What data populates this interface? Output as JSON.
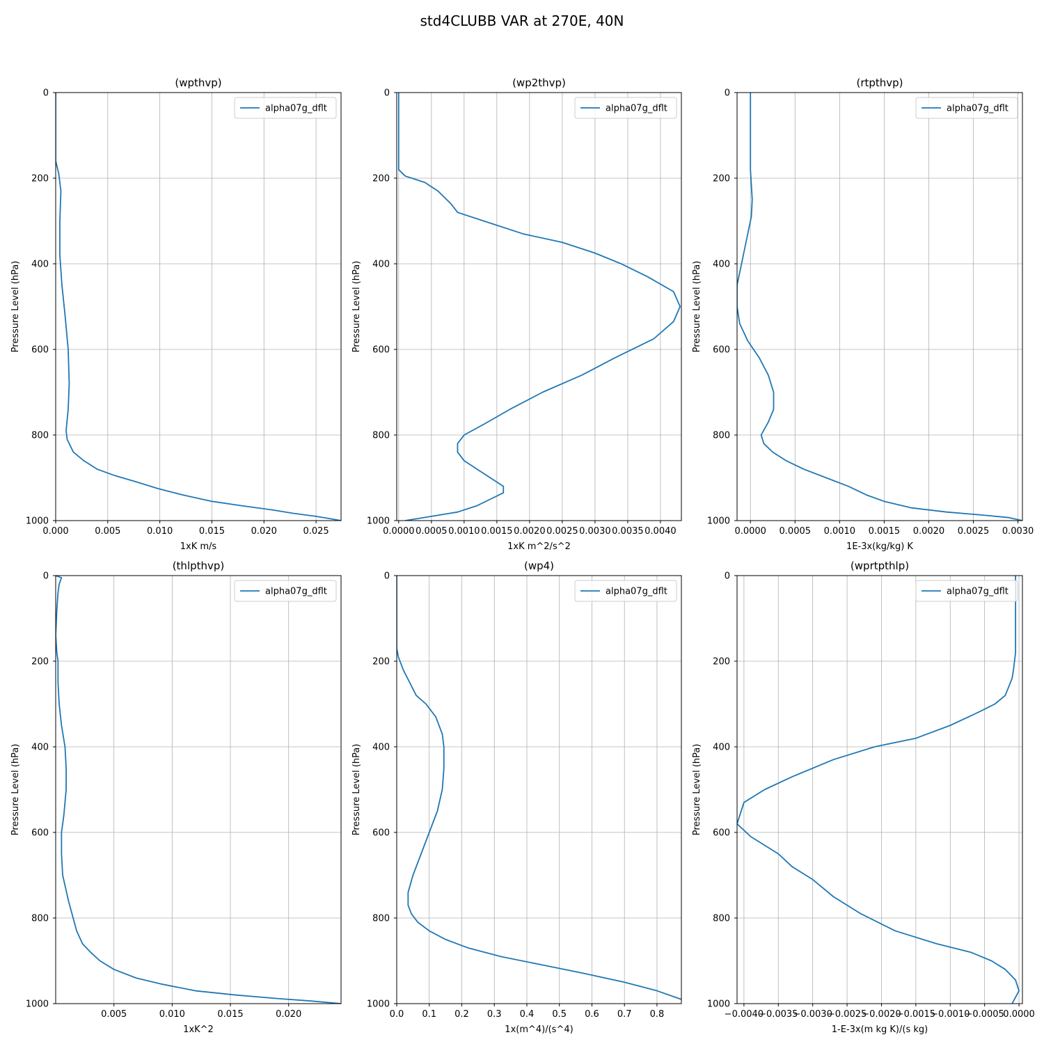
{
  "figure": {
    "title": "std4CLUBB VAR at 270E, 40N"
  },
  "chart_data": [
    {
      "type": "line",
      "title": "(wpthvp)",
      "xlabel": "1xK m/s",
      "ylabel": "Pressure Level (hPa)",
      "xlim": [
        0,
        0.0274
      ],
      "ylim": [
        1000,
        0
      ],
      "xticks": [
        "0.000",
        "0.005",
        "0.010",
        "0.015",
        "0.020",
        "0.025"
      ],
      "xtick_values": [
        0,
        0.005,
        0.01,
        0.015,
        0.02,
        0.025
      ],
      "yticks": [
        "0",
        "200",
        "400",
        "600",
        "800",
        "1000"
      ],
      "grid": true,
      "legend": "upper right",
      "series": [
        {
          "name": "alpha07g_dflt",
          "x": [
            0.0,
            0.0,
            0.0,
            0.0003,
            0.0005,
            0.0004,
            0.0004,
            0.0006,
            0.0009,
            0.0012,
            0.0013,
            0.0012,
            0.001,
            0.0011,
            0.0017,
            0.0027,
            0.004,
            0.0057,
            0.0078,
            0.0098,
            0.0122,
            0.015,
            0.0178,
            0.0208,
            0.0228,
            0.025,
            0.0262,
            0.0274
          ],
          "y": [
            0,
            100,
            160,
            190,
            230,
            300,
            380,
            450,
            520,
            600,
            680,
            740,
            790,
            810,
            840,
            860,
            880,
            895,
            910,
            925,
            940,
            955,
            965,
            975,
            983,
            990,
            995,
            1000
          ]
        }
      ]
    },
    {
      "type": "line",
      "title": "(wp2thvp)",
      "xlabel": "1xK m^2/s^2",
      "ylabel": "Pressure Level (hPa)",
      "xlim": [
        -3e-05,
        0.00432
      ],
      "ylim": [
        1000,
        0
      ],
      "xticks": [
        "0.0000",
        "0.0005",
        "0.0010",
        "0.0015",
        "0.0020",
        "0.0025",
        "0.0030",
        "0.0035",
        "0.0040"
      ],
      "xtick_values": [
        0,
        0.0005,
        0.001,
        0.0015,
        0.002,
        0.0025,
        0.003,
        0.0035,
        0.004
      ],
      "yticks": [
        "0",
        "200",
        "400",
        "600",
        "800",
        "1000"
      ],
      "grid": true,
      "legend": "upper right",
      "series": [
        {
          "name": "alpha07g_dflt",
          "x": [
            0.0,
            0.0,
            0.0,
            0.0001,
            0.0004,
            0.0006,
            0.0008,
            0.0009,
            0.0013,
            0.0019,
            0.0025,
            0.003,
            0.0034,
            0.0038,
            0.0042,
            0.0043,
            0.0042,
            0.0039,
            0.0033,
            0.0028,
            0.0022,
            0.0017,
            0.0013,
            0.001,
            0.0009,
            0.0009,
            0.001,
            0.0012,
            0.0014,
            0.0016,
            0.0016,
            0.0014,
            0.0012,
            0.0009,
            0.0005,
            0.0001
          ],
          "y": [
            0,
            100,
            180,
            195,
            210,
            230,
            260,
            280,
            300,
            330,
            350,
            375,
            400,
            430,
            465,
            500,
            535,
            575,
            620,
            660,
            700,
            740,
            775,
            800,
            820,
            840,
            860,
            880,
            900,
            920,
            935,
            950,
            965,
            980,
            990,
            1000
          ]
        }
      ]
    },
    {
      "type": "line",
      "title": "(rtpthvp)",
      "xlabel": "1E-3x(kg/kg) K",
      "ylabel": "Pressure Level (hPa)",
      "xlim": [
        -0.00015,
        0.00305
      ],
      "ylim": [
        1000,
        0
      ],
      "xticks": [
        "0.0000",
        "0.0005",
        "0.0010",
        "0.0015",
        "0.0020",
        "0.0025",
        "0.0030"
      ],
      "xtick_values": [
        0,
        0.0005,
        0.001,
        0.0015,
        0.002,
        0.0025,
        0.003
      ],
      "yticks": [
        "0",
        "200",
        "400",
        "600",
        "800",
        "1000"
      ],
      "grid": true,
      "legend": "upper right",
      "series": [
        {
          "name": "alpha07g_dflt",
          "x": [
            0.0,
            0.0,
            0.0,
            2e-05,
            1e-05,
            -5e-05,
            -0.0001,
            -0.00015,
            -0.00015,
            -0.00012,
            -3e-05,
            0.0001,
            0.0002,
            0.00026,
            0.00026,
            0.0002,
            0.00012,
            0.00015,
            0.00025,
            0.0004,
            0.0006,
            0.00085,
            0.0011,
            0.0013,
            0.0015,
            0.0018,
            0.0022,
            0.0026,
            0.0029,
            0.00305
          ],
          "y": [
            0,
            100,
            180,
            250,
            290,
            350,
            400,
            450,
            500,
            540,
            580,
            620,
            660,
            700,
            740,
            770,
            800,
            820,
            840,
            860,
            880,
            900,
            920,
            940,
            955,
            970,
            980,
            987,
            993,
            1000
          ]
        }
      ]
    },
    {
      "type": "line",
      "title": "(thlpthvp)",
      "xlabel": "1xK^2",
      "ylabel": "Pressure Level (hPa)",
      "xlim": [
        0,
        0.0245
      ],
      "ylim": [
        1000,
        0
      ],
      "xticks": [
        "0.005",
        "0.010",
        "0.015",
        "0.020"
      ],
      "xtick_values": [
        0.005,
        0.01,
        0.015,
        0.02
      ],
      "yticks": [
        "0",
        "200",
        "400",
        "600",
        "800",
        "1000"
      ],
      "grid": true,
      "legend": "upper right",
      "series": [
        {
          "name": "alpha07g_dflt",
          "x": [
            0.0,
            0.0005,
            0.0003,
            0.0002,
            0.0001,
            0.0,
            0.0001,
            0.0002,
            0.0002,
            0.0003,
            0.0005,
            0.0008,
            0.0009,
            0.0009,
            0.0007,
            0.0005,
            0.0005,
            0.0006,
            0.0011,
            0.0015,
            0.0018,
            0.0023,
            0.003,
            0.0038,
            0.005,
            0.0069,
            0.0092,
            0.012,
            0.0155,
            0.019,
            0.022,
            0.0245
          ],
          "y": [
            0,
            5,
            20,
            40,
            80,
            140,
            180,
            200,
            250,
            300,
            350,
            400,
            450,
            500,
            560,
            600,
            650,
            700,
            760,
            800,
            830,
            860,
            880,
            900,
            920,
            940,
            955,
            970,
            980,
            988,
            994,
            1000
          ]
        }
      ]
    },
    {
      "type": "line",
      "title": "(wp4)",
      "xlabel": "1x(m^4)/(s^4)",
      "ylabel": "Pressure Level (hPa)",
      "xlim": [
        0,
        0.875
      ],
      "ylim": [
        1000,
        0
      ],
      "xticks": [
        "0.0",
        "0.1",
        "0.2",
        "0.3",
        "0.4",
        "0.5",
        "0.6",
        "0.7",
        "0.8"
      ],
      "xtick_values": [
        0,
        0.1,
        0.2,
        0.3,
        0.4,
        0.5,
        0.6,
        0.7,
        0.8
      ],
      "yticks": [
        "0",
        "200",
        "400",
        "600",
        "800",
        "1000"
      ],
      "grid": true,
      "legend": "upper right",
      "series": [
        {
          "name": "alpha07g_dflt",
          "x": [
            0.0,
            0.0,
            0.0,
            0.005,
            0.02,
            0.04,
            0.06,
            0.09,
            0.12,
            0.14,
            0.145,
            0.145,
            0.14,
            0.125,
            0.1,
            0.075,
            0.05,
            0.035,
            0.035,
            0.045,
            0.065,
            0.1,
            0.15,
            0.22,
            0.32,
            0.45,
            0.58,
            0.7,
            0.8,
            0.875
          ],
          "y": [
            0,
            100,
            170,
            190,
            220,
            250,
            280,
            300,
            330,
            370,
            400,
            450,
            500,
            550,
            600,
            650,
            700,
            740,
            770,
            790,
            810,
            830,
            850,
            870,
            890,
            910,
            930,
            950,
            970,
            990
          ]
        }
      ]
    },
    {
      "type": "line",
      "title": "(wprtpthlp)",
      "xlabel": "1-E-3x(m kg K)/(s kg)",
      "ylabel": "Pressure Level (hPa)",
      "xlim": [
        -0.0041,
        5e-05
      ],
      "ylim": [
        1000,
        0
      ],
      "xticks": [
        "−0.0040",
        "−0.0035",
        "−0.0030",
        "−0.0025",
        "−0.0020",
        "−0.0015",
        "−0.0010",
        "−0.0005",
        "0.0000"
      ],
      "xtick_values": [
        -0.004,
        -0.0035,
        -0.003,
        -0.0025,
        -0.002,
        -0.0015,
        -0.001,
        -0.0005,
        0
      ],
      "yticks": [
        "0",
        "200",
        "400",
        "600",
        "800",
        "1000"
      ],
      "grid": true,
      "legend": "upper right",
      "series": [
        {
          "name": "alpha07g_dflt",
          "x": [
            -5e-05,
            -5e-05,
            -5e-05,
            -8e-05,
            -0.0001,
            -0.00015,
            -0.0002,
            -0.00035,
            -0.0006,
            -0.001,
            -0.0015,
            -0.0021,
            -0.0027,
            -0.0033,
            -0.0037,
            -0.004,
            -0.0041,
            -0.0039,
            -0.0035,
            -0.0033,
            -0.003,
            -0.0027,
            -0.0023,
            -0.0018,
            -0.0012,
            -0.0007,
            -0.0004,
            -0.0002,
            -5e-05,
            0.0,
            -0.0001
          ],
          "y": [
            0,
            100,
            180,
            220,
            240,
            260,
            280,
            300,
            320,
            350,
            380,
            400,
            430,
            470,
            500,
            530,
            580,
            610,
            650,
            680,
            710,
            750,
            790,
            830,
            860,
            880,
            900,
            920,
            945,
            970,
            1000
          ]
        }
      ]
    }
  ]
}
